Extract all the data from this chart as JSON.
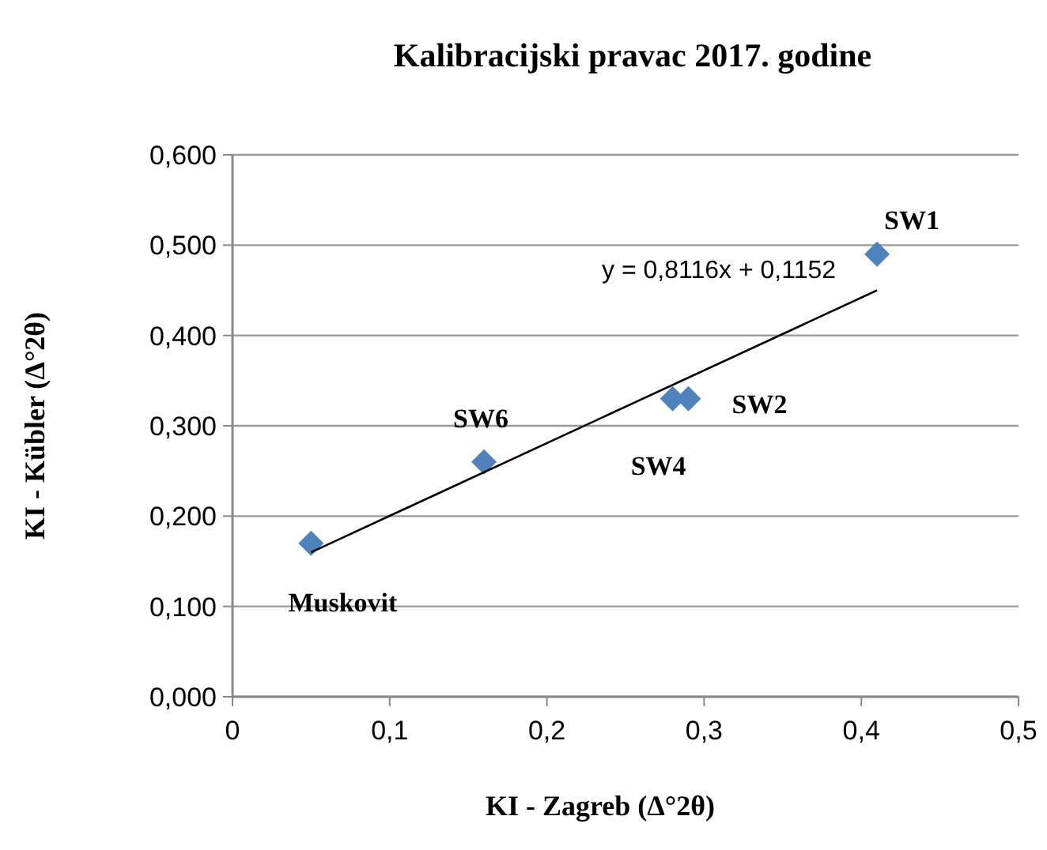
{
  "chart_data": {
    "type": "scatter",
    "title": "Kalibracijski pravac 2017. godine",
    "xlabel": "KI - Zagreb (Δ°2θ)",
    "ylabel": "KI - Kübler (Δ°2θ)",
    "x": [
      0.05,
      0.16,
      0.28,
      0.29,
      0.41
    ],
    "series": [
      {
        "type": "scatter",
        "color": "#4f81bd",
        "marker": "diamond",
        "values": [
          0.17,
          0.26,
          0.33,
          0.33,
          0.49
        ]
      },
      {
        "type": "line",
        "color": "#000000",
        "x": [
          0.05,
          0.41
        ],
        "values": [
          0.16,
          0.45
        ]
      }
    ],
    "annotations": [
      {
        "text": "Muskovit",
        "x": 0.05,
        "y": 0.17
      },
      {
        "text": "SW6",
        "x": 0.16,
        "y": 0.26
      },
      {
        "text": "SW4",
        "x": 0.28,
        "y": 0.33
      },
      {
        "text": "SW2",
        "x": 0.29,
        "y": 0.33
      },
      {
        "text": "SW1",
        "x": 0.41,
        "y": 0.49
      },
      "y = 0,8116x + 0,1152"
    ],
    "xlim": [
      0,
      0.5
    ],
    "xticks": [
      0,
      {
        "value": 0.1,
        "label": "0,1"
      },
      {
        "value": 0.2,
        "label": "0,2"
      },
      {
        "value": 0.3,
        "label": "0,3"
      },
      {
        "value": 0.4,
        "label": "0,4"
      },
      {
        "value": 0.5,
        "label": "0,5"
      }
    ],
    "ylim": [
      0,
      0.6
    ],
    "yticks": [
      {
        "value": 0,
        "label": "0,000"
      },
      {
        "value": 0.1,
        "label": "0,100"
      },
      {
        "value": 0.2,
        "label": "0,200"
      },
      {
        "value": 0.3,
        "label": "0,300"
      },
      {
        "value": 0.4,
        "label": "0,400"
      },
      {
        "value": 0.5,
        "label": "0,500"
      },
      {
        "value": 0.6,
        "label": "0,600"
      }
    ],
    "grid": "y"
  }
}
